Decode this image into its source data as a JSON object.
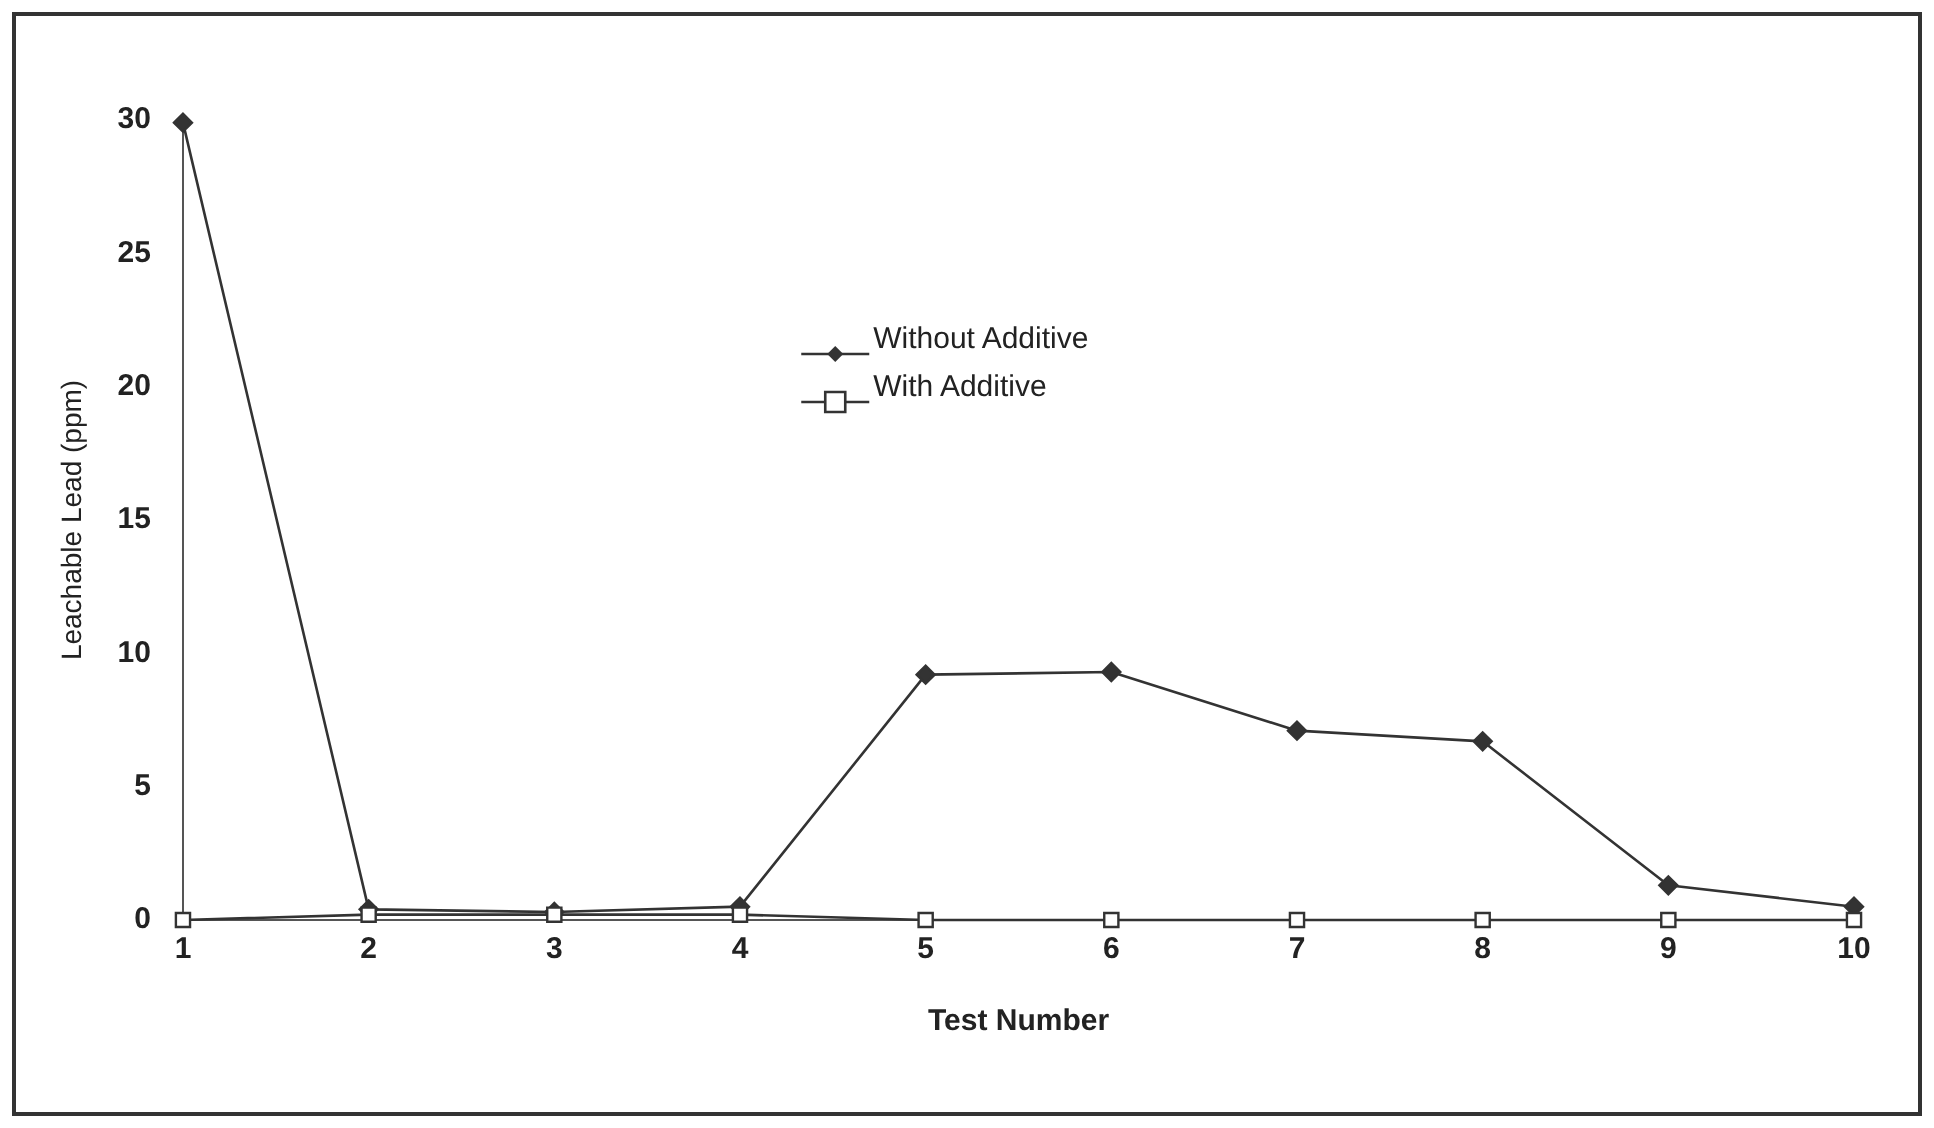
{
  "chart_data": {
    "type": "line",
    "xlabel": "Test Number",
    "ylabel": "Leachable Lead (ppm)",
    "categories": [
      "1",
      "2",
      "3",
      "4",
      "5",
      "6",
      "7",
      "8",
      "9",
      "10"
    ],
    "ylim": [
      0,
      30
    ],
    "yticks": [
      0,
      5,
      10,
      15,
      20,
      25,
      30
    ],
    "grid": false,
    "legend": "top",
    "series": [
      {
        "name": "Without Additive",
        "color": "#333333",
        "marker": "diamond",
        "values": [
          29.9,
          0.4,
          0.3,
          0.5,
          9.2,
          9.3,
          7.1,
          6.7,
          1.3,
          0.5
        ]
      },
      {
        "name": "With Additive",
        "color": "#333333",
        "marker": "square",
        "values": [
          0,
          0.2,
          0.2,
          0.2,
          0,
          0,
          0,
          0,
          0,
          0
        ]
      }
    ]
  }
}
